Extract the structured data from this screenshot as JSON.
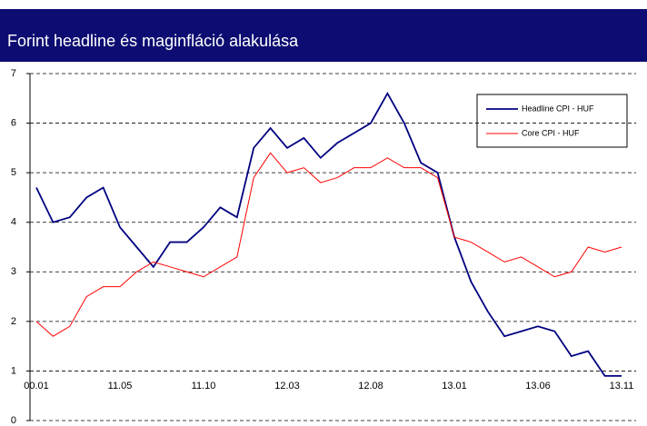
{
  "chart_data": {
    "type": "line",
    "title": "Forint headline és maginfláció alakulása",
    "categories": [
      "00.01",
      null,
      null,
      null,
      null,
      "11.05",
      null,
      null,
      null,
      null,
      "11.10",
      null,
      null,
      null,
      null,
      "12.03",
      null,
      null,
      null,
      null,
      "12.08",
      null,
      null,
      null,
      null,
      "13.01",
      null,
      null,
      null,
      null,
      "13.06",
      null,
      null,
      null,
      null,
      "13.11"
    ],
    "series": [
      {
        "name": "Headline CPI - HUF",
        "color": "#000080",
        "values": [
          4.7,
          4.0,
          4.1,
          4.5,
          4.7,
          3.9,
          3.5,
          3.1,
          3.6,
          3.6,
          3.9,
          4.3,
          4.1,
          5.5,
          5.9,
          5.5,
          5.7,
          5.3,
          5.6,
          5.8,
          6.0,
          6.6,
          6.0,
          5.2,
          5.0,
          3.7,
          2.8,
          2.2,
          1.7,
          1.8,
          1.9,
          1.8,
          1.3,
          1.4,
          0.9,
          0.9
        ]
      },
      {
        "name": "Core CPI - HUF",
        "color": "#ff0000",
        "values": [
          2.0,
          1.7,
          1.9,
          2.5,
          2.7,
          2.7,
          3.0,
          3.2,
          3.1,
          3.0,
          2.9,
          3.1,
          3.3,
          4.9,
          5.4,
          5.0,
          5.1,
          4.8,
          4.9,
          5.1,
          5.1,
          5.3,
          5.1,
          5.1,
          4.9,
          3.7,
          3.6,
          3.4,
          3.2,
          3.3,
          3.1,
          2.9,
          3.0,
          3.5,
          3.4,
          3.5
        ]
      }
    ],
    "ylim": [
      0,
      7
    ],
    "yticks": [
      0,
      1,
      2,
      3,
      4,
      5,
      6,
      7
    ],
    "grid": true
  }
}
